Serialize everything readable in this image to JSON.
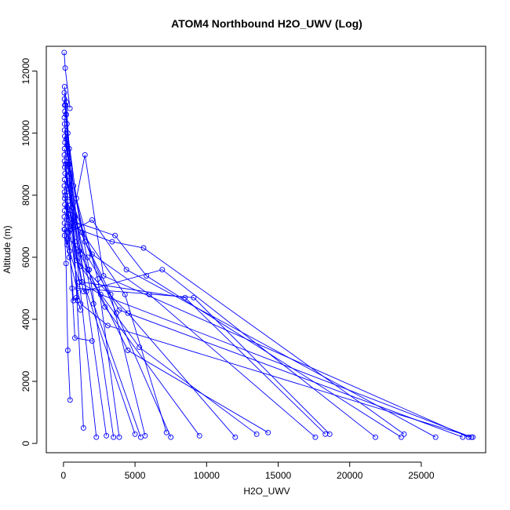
{
  "chart_data": {
    "type": "scatter",
    "title": "ATOM4 Northbound H2O_UWV (Log)",
    "xlabel": "H2O_UWV",
    "ylabel": "Altitude (m)",
    "xlim": [
      -1200,
      29500
    ],
    "ylim": [
      -300,
      12800
    ],
    "x_ticks": [
      0,
      5000,
      10000,
      15000,
      20000,
      25000
    ],
    "y_ticks": [
      0,
      2000,
      4000,
      6000,
      8000,
      10000,
      12000
    ],
    "grid": false,
    "legend": "none",
    "series_color": "#0000ff",
    "series": [
      {
        "x": [
          50,
          120,
          450
        ],
        "y": [
          12600,
          12100,
          10800
        ]
      },
      {
        "x": [
          80,
          200,
          400,
          1400
        ],
        "y": [
          11500,
          11000,
          9500,
          500
        ]
      },
      {
        "x": [
          60,
          150,
          350,
          800,
          2300
        ],
        "y": [
          11300,
          10900,
          9000,
          6500,
          200
        ]
      },
      {
        "x": [
          70,
          180,
          500,
          1200,
          3000
        ],
        "y": [
          11100,
          10600,
          8700,
          6100,
          250
        ]
      },
      {
        "x": [
          90,
          250,
          700,
          1800,
          3500
        ],
        "y": [
          10900,
          10300,
          8300,
          5600,
          200
        ]
      },
      {
        "x": [
          100,
          300,
          900,
          2400,
          3900
        ],
        "y": [
          10700,
          10000,
          7900,
          5300,
          200
        ]
      },
      {
        "x": [
          60,
          200,
          600,
          1600,
          5000
        ],
        "y": [
          10500,
          9800,
          7600,
          4900,
          300
        ]
      },
      {
        "x": [
          80,
          260,
          800,
          2100,
          5400
        ],
        "y": [
          10300,
          9600,
          7300,
          4500,
          200
        ]
      },
      {
        "x": [
          70,
          300,
          1000,
          3300,
          5700
        ],
        "y": [
          10100,
          9400,
          7000,
          4800,
          250
        ]
      },
      {
        "x": [
          90,
          350,
          1300,
          4300,
          7200
        ],
        "y": [
          9900,
          9200,
          6800,
          4800,
          350
        ]
      },
      {
        "x": [
          100,
          400,
          1500,
          3700,
          7500
        ],
        "y": [
          9700,
          9000,
          6500,
          4200,
          200
        ]
      },
      {
        "x": [
          80,
          330,
          1100,
          2900,
          9500
        ],
        "y": [
          9500,
          8800,
          6200,
          4400,
          250
        ]
      },
      {
        "x": [
          60,
          280,
          900,
          4500,
          12000
        ],
        "y": [
          9300,
          8600,
          5900,
          4200,
          200
        ]
      },
      {
        "x": [
          70,
          320,
          1200,
          5300,
          13500
        ],
        "y": [
          9100,
          8400,
          5700,
          3100,
          300
        ]
      },
      {
        "x": [
          90,
          380,
          1700,
          4500,
          14300
        ],
        "y": [
          8900,
          8200,
          5600,
          3000,
          350
        ]
      },
      {
        "x": [
          110,
          420,
          2000,
          6000,
          17600
        ],
        "y": [
          8700,
          8000,
          6100,
          4800,
          200
        ]
      },
      {
        "x": [
          80,
          300,
          1300,
          8500,
          18300
        ],
        "y": [
          8500,
          7800,
          5200,
          4700,
          300
        ]
      },
      {
        "x": [
          60,
          250,
          1000,
          9100,
          18600
        ],
        "y": [
          8300,
          7600,
          5000,
          4700,
          300
        ]
      },
      {
        "x": [
          70,
          350,
          1400,
          6900,
          21800
        ],
        "y": [
          8100,
          7400,
          4900,
          5600,
          200
        ]
      },
      {
        "x": [
          90,
          400,
          3600,
          5800,
          23600
        ],
        "y": [
          7900,
          7200,
          6700,
          5400,
          200
        ]
      },
      {
        "x": [
          100,
          450,
          3400,
          5600,
          23800
        ],
        "y": [
          7700,
          7000,
          6500,
          6300,
          300
        ]
      },
      {
        "x": [
          80,
          380,
          2000,
          4400,
          26000
        ],
        "y": [
          7500,
          6800,
          7200,
          5600,
          200
        ]
      },
      {
        "x": [
          60,
          300,
          1700,
          3900,
          27900
        ],
        "y": [
          7300,
          6600,
          6000,
          4300,
          200
        ]
      },
      {
        "x": [
          70,
          260,
          1500,
          2800,
          28300
        ],
        "y": [
          7100,
          6400,
          9300,
          5400,
          200
        ]
      },
      {
        "x": [
          90,
          420,
          1100,
          2600,
          28500
        ],
        "y": [
          6900,
          6200,
          5200,
          4800,
          200
        ]
      },
      {
        "x": [
          80,
          400,
          1200,
          3100,
          28600
        ],
        "y": [
          6700,
          6000,
          4500,
          3800,
          200
        ]
      },
      {
        "x": [
          60,
          180,
          300,
          460
        ],
        "y": [
          6900,
          5800,
          3000,
          1400
        ]
      },
      {
        "x": [
          150,
          600,
          800,
          2000
        ],
        "y": [
          9000,
          5000,
          3400,
          3300
        ]
      },
      {
        "x": [
          120,
          700,
          900,
          1200
        ],
        "y": [
          8000,
          4600,
          4700,
          4300
        ]
      },
      {
        "x": [
          200,
          500,
          1000
        ],
        "y": [
          10600,
          7500,
          4600
        ]
      }
    ]
  }
}
